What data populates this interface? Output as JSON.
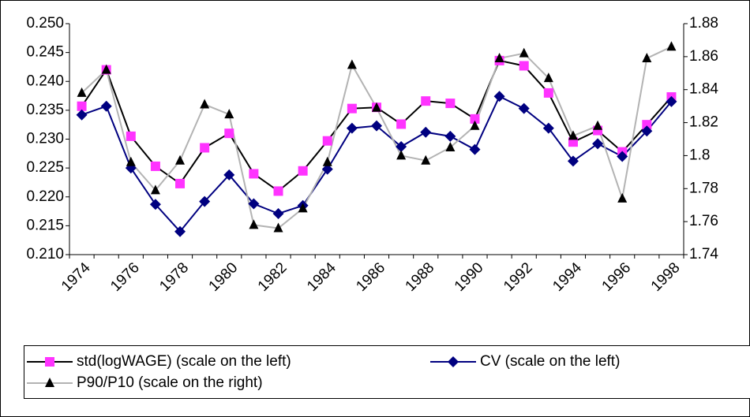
{
  "chart_data": {
    "type": "line",
    "categories": [
      "1974",
      null,
      "1976",
      null,
      "1978",
      null,
      "1980",
      null,
      "1982",
      null,
      "1984",
      null,
      "1986",
      null,
      "1988",
      null,
      "1990",
      null,
      "1992",
      null,
      "1994",
      null,
      "1996",
      null,
      "1998"
    ],
    "ylim": [
      0.21,
      0.25
    ],
    "yticks": [
      {
        "value": 0.21,
        "label": "0.210"
      },
      0.215,
      {
        "value": 0.22,
        "label": "0.220"
      },
      0.225,
      {
        "value": 0.23,
        "label": "0.230"
      },
      0.235,
      {
        "value": 0.24,
        "label": "0.240"
      },
      0.245,
      {
        "value": 0.25,
        "label": "0.250"
      }
    ],
    "y2lim": [
      1.74,
      1.88
    ],
    "y2ticks": [
      1.74,
      1.76,
      1.78,
      1.8,
      1.82,
      1.84,
      1.86,
      1.88
    ],
    "grid": false,
    "series": [
      {
        "name": "std(logWAGE) (scale on the left)",
        "color": "#000000",
        "marker": "square",
        "marker_color": "#ff33ff",
        "values": [
          0.2357,
          0.242,
          0.2305,
          0.2253,
          0.2223,
          0.2285,
          0.231,
          0.224,
          0.221,
          0.2245,
          0.2297,
          0.2353,
          0.2355,
          0.2326,
          0.2366,
          0.2362,
          0.2335,
          0.2436,
          0.2427,
          0.238,
          0.2295,
          0.2315,
          0.2278,
          0.2325,
          0.2373
        ]
      },
      {
        "name": "CV (scale on the left)",
        "color": "#000080",
        "marker": "diamond",
        "marker_color": "#000080",
        "values": [
          0.2342,
          0.2357,
          0.225,
          0.2187,
          0.214,
          0.2192,
          0.2238,
          0.2188,
          0.2171,
          0.2185,
          0.2248,
          0.2319,
          0.2323,
          0.2287,
          0.2312,
          0.2305,
          0.2282,
          0.2374,
          0.2353,
          0.2319,
          0.2262,
          0.2292,
          0.227,
          0.2314,
          0.2365
        ]
      },
      {
        "name": "P90/P10 (scale on the right)",
        "color": "#b3b3b3",
        "marker": "triangle",
        "marker_color": "#000000",
        "axis": "y2",
        "values": [
          1.838,
          1.852,
          1.796,
          1.779,
          1.797,
          1.831,
          1.825,
          1.758,
          1.756,
          1.768,
          1.796,
          1.855,
          1.829,
          1.8,
          1.797,
          1.805,
          1.818,
          1.859,
          1.862,
          1.847,
          1.812,
          1.818,
          1.774,
          1.859,
          1.866
        ]
      }
    ]
  }
}
